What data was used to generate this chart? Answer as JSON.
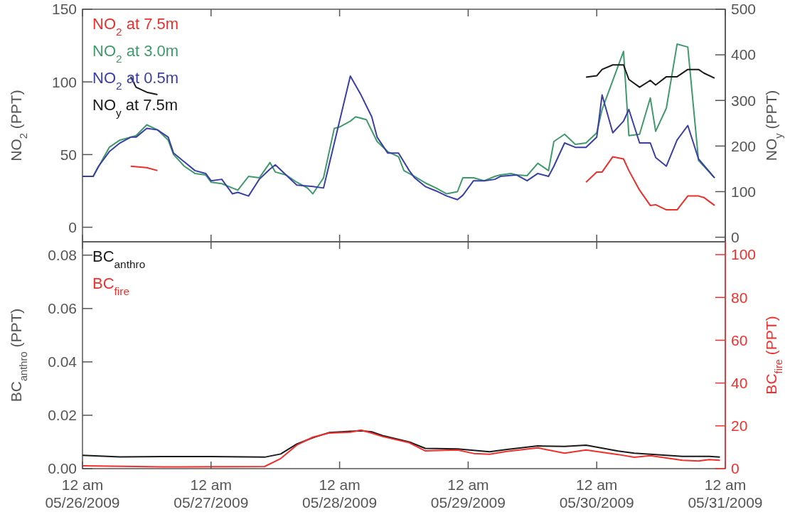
{
  "chart_data": [
    {
      "type": "line",
      "ylabel": "NO$_{2}$ (PPT)",
      "y2label": "NO$_{y}$ (PPT)",
      "legend": "top left",
      "tick_labels": "y",
      "xlim": [
        "2009-05-26T00:00",
        "2009-05-31T00:00"
      ],
      "xticks": [
        {
          "value": "2009-05-26T00:00",
          "label": null
        },
        {
          "value": "2009-05-27T00:00",
          "label": null
        },
        {
          "value": "2009-05-28T00:00",
          "label": null
        },
        {
          "value": "2009-05-29T00:00",
          "label": null
        },
        {
          "value": "2009-05-30T00:00",
          "label": null
        },
        {
          "value": "2009-05-31T00:00",
          "label": null
        }
      ],
      "ylim": [
        -10,
        150
      ],
      "yticks": [
        0,
        50,
        100,
        150
      ],
      "y2lim": [
        -10,
        500
      ],
      "y2ticks": [
        0,
        100,
        200,
        300,
        400,
        500
      ],
      "series": [
        {
          "name": "NO$_{2}$ at 7.5m",
          "color": "#e8302c",
          "x": [
            "2009-05-26T09:00",
            "2009-05-26T12:00",
            "2009-05-26T14:00",
            "2009-05-28T00:00",
            "2009-05-29T22:00",
            "2009-05-30T00:00",
            "2009-05-30T01:00",
            "2009-05-30T03:00",
            "2009-05-30T05:00",
            "2009-05-30T06:00",
            "2009-05-30T08:00",
            "2009-05-30T10:00",
            "2009-05-30T11:00",
            "2009-05-30T13:00",
            "2009-05-30T15:00",
            "2009-05-30T17:00",
            "2009-05-30T19:00",
            "2009-05-30T20:00",
            "2009-05-30T22:00"
          ],
          "values": [
            42,
            41,
            39,
            null,
            31,
            38,
            38,
            48.5,
            47,
            39,
            25.5,
            15,
            15.5,
            12,
            12,
            21.5,
            21.5,
            20.5,
            15
          ]
        },
        {
          "name": "NO$_{2}$ at 3.0m",
          "color": "#3f9a6c",
          "x": [
            "2009-05-26T00:00",
            "2009-05-26T02:00",
            "2009-05-26T05:00",
            "2009-05-26T07:00",
            "2009-05-26T09:00",
            "2009-05-26T10:00",
            "2009-05-26T12:00",
            "2009-05-26T14:00",
            "2009-05-26T16:00",
            "2009-05-26T17:00",
            "2009-05-26T19:00",
            "2009-05-26T21:00",
            "2009-05-26T23:00",
            "2009-05-27T00:00",
            "2009-05-27T02:00",
            "2009-05-27T04:00",
            "2009-05-27T05:00",
            "2009-05-27T07:00",
            "2009-05-27T09:00",
            "2009-05-27T11:00",
            "2009-05-27T12:00",
            "2009-05-27T14:00",
            "2009-05-27T16:00",
            "2009-05-27T18:00",
            "2009-05-27T19:00",
            "2009-05-27T21:00",
            "2009-05-27T23:00",
            "2009-05-28T00:00",
            "2009-05-28T02:00",
            "2009-05-28T03:00",
            "2009-05-28T05:00",
            "2009-05-28T07:00",
            "2009-05-28T09:00",
            "2009-05-28T11:00",
            "2009-05-28T12:00",
            "2009-05-28T14:00",
            "2009-05-28T16:00",
            "2009-05-28T18:00",
            "2009-05-28T20:00",
            "2009-05-28T22:00",
            "2009-05-28T23:00",
            "2009-05-29T01:00",
            "2009-05-29T03:00",
            "2009-05-29T05:00",
            "2009-05-29T06:00",
            "2009-05-29T08:00",
            "2009-05-29T09:00",
            "2009-05-29T11:00",
            "2009-05-29T13:00",
            "2009-05-29T15:00",
            "2009-05-29T16:00",
            "2009-05-29T18:00",
            "2009-05-29T20:00",
            "2009-05-29T22:00",
            "2009-05-30T00:00",
            "2009-05-30T01:00",
            "2009-05-30T03:00",
            "2009-05-30T05:00",
            "2009-05-30T06:00",
            "2009-05-30T08:00",
            "2009-05-30T10:00",
            "2009-05-30T11:00",
            "2009-05-30T13:00",
            "2009-05-30T15:00",
            "2009-05-30T17:00",
            "2009-05-30T19:00",
            "2009-05-30T22:00"
          ],
          "values": [
            35,
            35,
            55,
            60,
            62,
            63,
            70.5,
            67,
            60,
            50,
            42,
            37,
            36,
            31,
            30,
            27,
            25.5,
            35,
            34,
            44.5,
            38,
            36,
            31,
            27,
            23,
            34,
            68,
            69,
            73,
            76,
            74,
            59,
            52,
            48.5,
            39,
            35,
            30.5,
            27,
            23,
            24.5,
            34,
            34,
            32,
            35,
            36,
            37,
            36,
            35.5,
            44,
            39,
            59,
            64,
            57,
            58,
            65,
            81,
            101,
            121,
            63,
            64,
            89,
            66,
            82,
            126,
            124,
            46,
            34
          ]
        },
        {
          "name": "NO$_{2}$ at 0.5m",
          "color": "#3a3fa6",
          "x": [
            "2009-05-26T00:00",
            "2009-05-26T02:00",
            "2009-05-26T03:00",
            "2009-05-26T05:00",
            "2009-05-26T07:00",
            "2009-05-26T09:00",
            "2009-05-26T10:00",
            "2009-05-26T12:00",
            "2009-05-26T14:00",
            "2009-05-26T16:00",
            "2009-05-26T17:00",
            "2009-05-26T19:00",
            "2009-05-26T21:00",
            "2009-05-26T23:00",
            "2009-05-27T00:00",
            "2009-05-27T02:00",
            "2009-05-27T04:00",
            "2009-05-27T05:00",
            "2009-05-27T07:00",
            "2009-05-27T09:00",
            "2009-05-27T11:00",
            "2009-05-27T12:00",
            "2009-05-27T14:00",
            "2009-05-27T16:00",
            "2009-05-27T19:00",
            "2009-05-27T21:00",
            "2009-05-28T02:00",
            "2009-05-28T04:00",
            "2009-05-28T06:00",
            "2009-05-28T07:00",
            "2009-05-28T09:00",
            "2009-05-28T11:00",
            "2009-05-28T13:00",
            "2009-05-28T14:00",
            "2009-05-28T16:00",
            "2009-05-28T18:00",
            "2009-05-28T20:00",
            "2009-05-28T22:00",
            "2009-05-28T23:00",
            "2009-05-29T01:00",
            "2009-05-29T03:00",
            "2009-05-29T05:00",
            "2009-05-29T06:00",
            "2009-05-29T09:00",
            "2009-05-29T11:00",
            "2009-05-29T13:00",
            "2009-05-29T15:00",
            "2009-05-29T16:00",
            "2009-05-29T18:00",
            "2009-05-29T20:00",
            "2009-05-29T22:00",
            "2009-05-30T00:00",
            "2009-05-30T01:00",
            "2009-05-30T03:00",
            "2009-05-30T05:00",
            "2009-05-30T06:00",
            "2009-05-30T08:00",
            "2009-05-30T10:00",
            "2009-05-30T11:00",
            "2009-05-30T13:00",
            "2009-05-30T15:00",
            "2009-05-30T17:00",
            "2009-05-30T19:00",
            "2009-05-30T22:00"
          ],
          "values": [
            35,
            35,
            42,
            52,
            58,
            62,
            62,
            68,
            67,
            62,
            51,
            45,
            39,
            37,
            32,
            33,
            23,
            24,
            21.5,
            33,
            40,
            43,
            36,
            29,
            28,
            27,
            104,
            91,
            76,
            62,
            51,
            51,
            39,
            34,
            28,
            25,
            21.5,
            19,
            22,
            32,
            32,
            33,
            35,
            36,
            32,
            37,
            35,
            42,
            58,
            55,
            55,
            62,
            91,
            65,
            73,
            81,
            58,
            58,
            48,
            42,
            60,
            70,
            47,
            34
          ]
        },
        {
          "name": "NO$_{y}$ at 7.5m",
          "color": "#1a1a1a",
          "axis": "y2",
          "x": [
            "2009-05-26T09:00",
            "2009-05-26T10:00",
            "2009-05-26T12:00",
            "2009-05-26T14:00",
            "2009-05-28T00:00",
            "2009-05-29T22:00",
            "2009-05-30T00:00",
            "2009-05-30T01:00",
            "2009-05-30T03:00",
            "2009-05-30T05:00",
            "2009-05-30T06:00",
            "2009-05-30T08:00",
            "2009-05-30T10:00",
            "2009-05-30T11:00",
            "2009-05-30T13:00",
            "2009-05-30T15:00",
            "2009-05-30T17:00",
            "2009-05-30T19:00",
            "2009-05-30T20:00",
            "2009-05-30T22:00"
          ],
          "values": [
            352,
            329,
            318,
            313,
            null,
            351,
            354,
            368,
            378,
            378,
            346,
            329,
            344,
            334,
            352,
            352,
            368,
            368,
            360,
            349
          ]
        }
      ]
    },
    {
      "type": "line",
      "ylabel": "BC$_{anthro}$ (PPT)",
      "y2label": "BC$_{fire}$ (PPT)",
      "legend": "top left",
      "xlim": [
        "2009-05-26T00:00",
        "2009-05-31T00:00"
      ],
      "xticks": [
        {
          "value": "2009-05-26T00:00",
          "label": "12 am\n05/26/2009"
        },
        {
          "value": "2009-05-27T00:00",
          "label": "12 am\n05/27/2009"
        },
        {
          "value": "2009-05-28T00:00",
          "label": "12 am\n05/28/2009"
        },
        {
          "value": "2009-05-29T00:00",
          "label": "12 am\n05/29/2009"
        },
        {
          "value": "2009-05-30T00:00",
          "label": "12 am\n05/30/2009"
        },
        {
          "value": "2009-05-31T00:00",
          "label": "12 am\n05/31/2009"
        }
      ],
      "ylim": [
        0,
        0.085
      ],
      "yticks": [
        {
          "value": 0,
          "label": "0.00"
        },
        0.02,
        0.04,
        0.06,
        0.08
      ],
      "y2lim": [
        0,
        106
      ],
      "y2ticks": [
        0,
        20,
        40,
        60,
        80,
        100
      ],
      "series": [
        {
          "name": "BC$_{anthro}$",
          "color": "#1a1a1a",
          "x": [
            "2009-05-26T00:00",
            "2009-05-26T07:00",
            "2009-05-26T15:00",
            "2009-05-27T00:00",
            "2009-05-27T10:00",
            "2009-05-27T13:00",
            "2009-05-27T16:00",
            "2009-05-27T19:00",
            "2009-05-27T22:00",
            "2009-05-28T02:00",
            "2009-05-28T04:00",
            "2009-05-28T06:00",
            "2009-05-28T08:00",
            "2009-05-28T13:00",
            "2009-05-28T16:00",
            "2009-05-28T22:00",
            "2009-05-29T04:00",
            "2009-05-29T07:00",
            "2009-05-29T13:00",
            "2009-05-29T18:00",
            "2009-05-29T22:00",
            "2009-05-30T04:00",
            "2009-05-30T07:00",
            "2009-05-30T10:00",
            "2009-05-30T16:00",
            "2009-05-30T21:00",
            "2009-05-30T23:00"
          ],
          "values": [
            0.005,
            0.0044,
            0.0045,
            0.0045,
            0.0043,
            0.0055,
            0.0092,
            0.0116,
            0.0135,
            0.014,
            0.0142,
            0.0138,
            0.0124,
            0.01,
            0.0076,
            0.0074,
            0.0063,
            0.0071,
            0.0085,
            0.0083,
            0.0088,
            0.0066,
            0.0058,
            0.0054,
            0.0046,
            0.0046,
            0.0043
          ]
        },
        {
          "name": "BC$_{fire}$",
          "color": "#f0302c",
          "axis": "y2",
          "x": [
            "2009-05-26T00:00",
            "2009-05-26T15:00",
            "2009-05-27T10:00",
            "2009-05-27T13:00",
            "2009-05-27T16:00",
            "2009-05-27T19:00",
            "2009-05-27T22:00",
            "2009-05-28T02:00",
            "2009-05-28T04:00",
            "2009-05-28T06:00",
            "2009-05-28T08:00",
            "2009-05-28T13:00",
            "2009-05-28T16:00",
            "2009-05-28T22:00",
            "2009-05-29T01:00",
            "2009-05-29T04:00",
            "2009-05-29T07:00",
            "2009-05-29T13:00",
            "2009-05-29T18:00",
            "2009-05-29T22:00",
            "2009-05-30T04:00",
            "2009-05-30T07:00",
            "2009-05-30T10:00",
            "2009-05-30T16:00",
            "2009-05-30T19:00",
            "2009-05-30T21:00",
            "2009-05-30T23:00"
          ],
          "values": [
            1.3,
            0.8,
            1,
            4.7,
            11,
            14.7,
            16.6,
            17,
            18,
            16.6,
            15,
            12.1,
            8.3,
            8.7,
            7.1,
            6.7,
            8,
            9.7,
            7.2,
            8.7,
            6.6,
            5.3,
            6.1,
            3.9,
            3.6,
            4.2,
            3.9
          ]
        }
      ]
    }
  ]
}
